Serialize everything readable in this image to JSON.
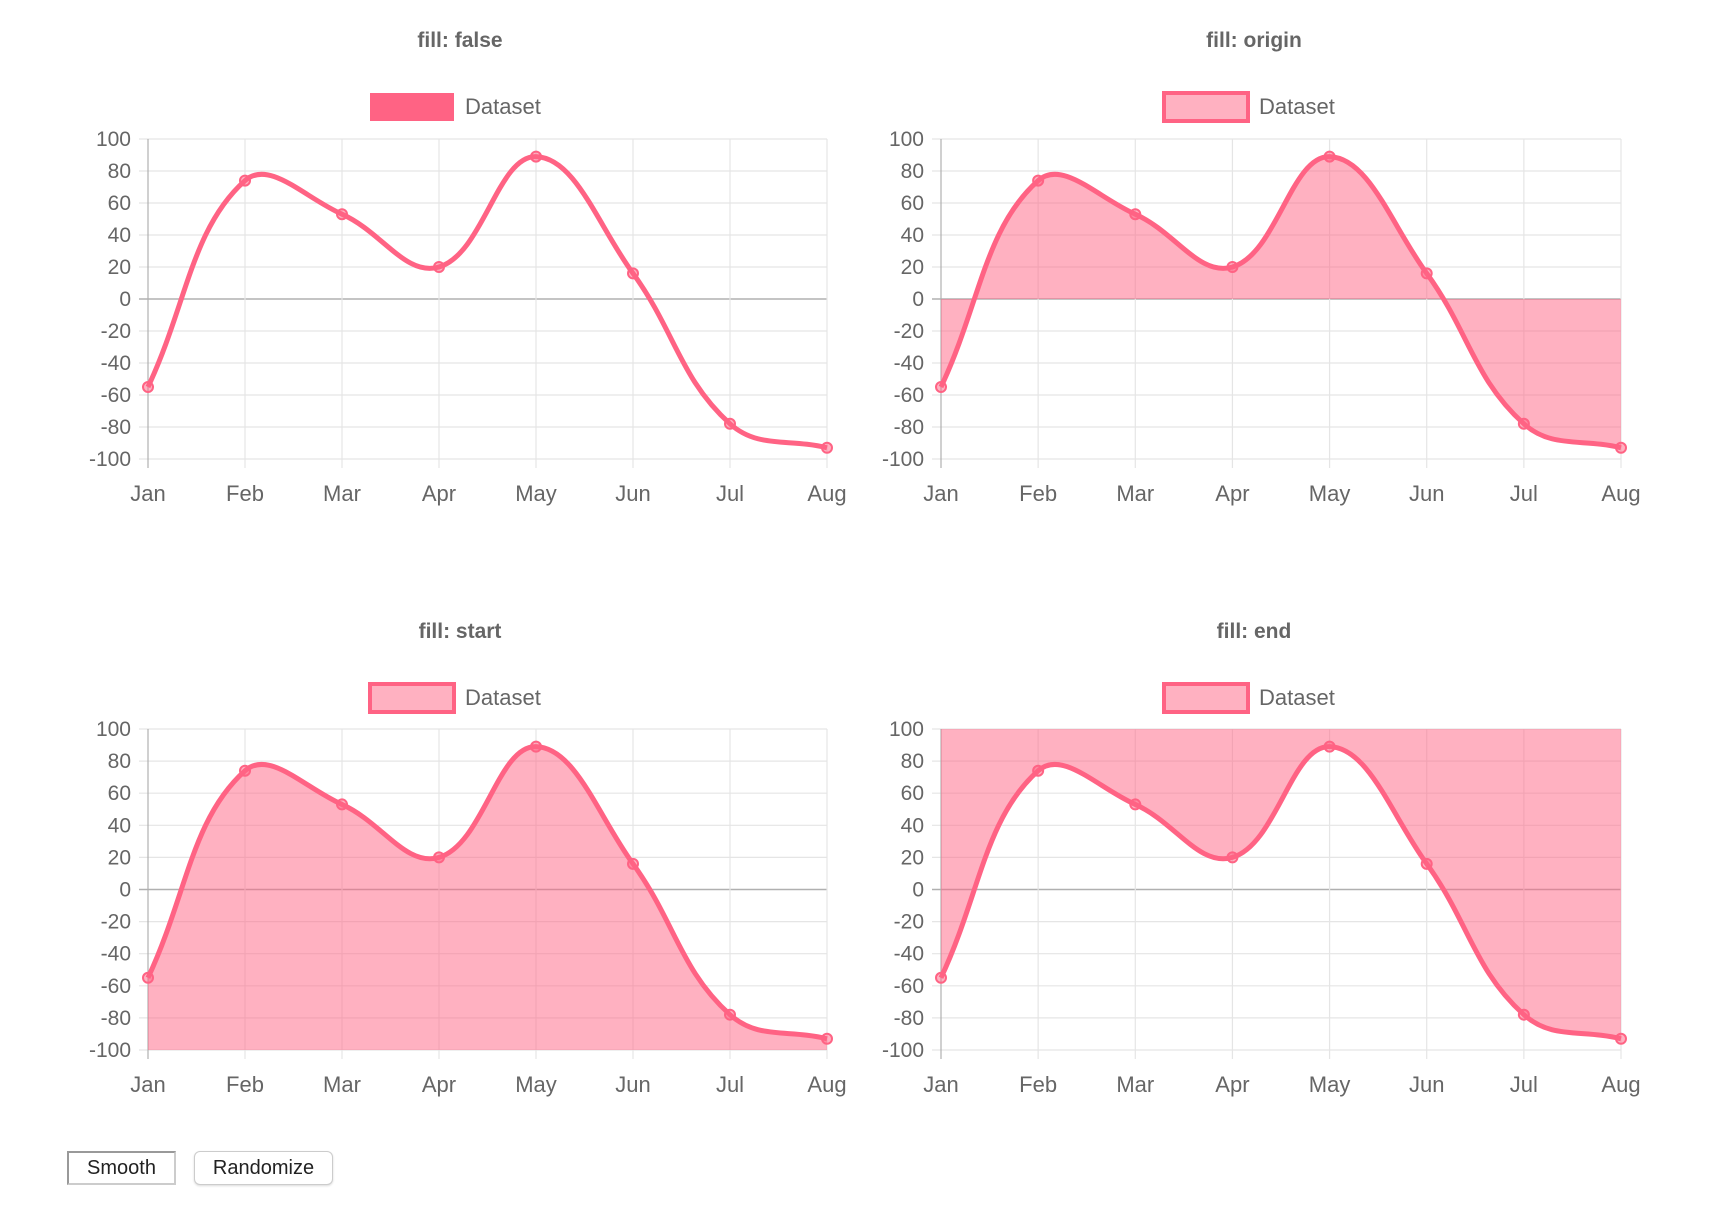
{
  "chart_data": [
    {
      "type": "line",
      "title": "fill: false",
      "fill": "false",
      "categories": [
        "Jan",
        "Feb",
        "Mar",
        "Apr",
        "May",
        "Jun",
        "Jul",
        "Aug"
      ],
      "series": [
        {
          "name": "Dataset",
          "values": [
            -55,
            74,
            53,
            20,
            89,
            16,
            -78,
            -93
          ]
        }
      ],
      "ylim": [
        -100,
        100
      ],
      "yticks": [
        100,
        80,
        60,
        40,
        20,
        0,
        -20,
        -40,
        -60,
        -80,
        -100
      ],
      "grid": true,
      "legend": "top"
    },
    {
      "type": "area",
      "title": "fill: origin",
      "fill": "origin",
      "categories": [
        "Jan",
        "Feb",
        "Mar",
        "Apr",
        "May",
        "Jun",
        "Jul",
        "Aug"
      ],
      "series": [
        {
          "name": "Dataset",
          "values": [
            -55,
            74,
            53,
            20,
            89,
            16,
            -78,
            -93
          ]
        }
      ],
      "ylim": [
        -100,
        100
      ],
      "yticks": [
        100,
        80,
        60,
        40,
        20,
        0,
        -20,
        -40,
        -60,
        -80,
        -100
      ],
      "grid": true,
      "legend": "top"
    },
    {
      "type": "area",
      "title": "fill: start",
      "fill": "start",
      "categories": [
        "Jan",
        "Feb",
        "Mar",
        "Apr",
        "May",
        "Jun",
        "Jul",
        "Aug"
      ],
      "series": [
        {
          "name": "Dataset",
          "values": [
            -55,
            74,
            53,
            20,
            89,
            16,
            -78,
            -93
          ]
        }
      ],
      "ylim": [
        -100,
        100
      ],
      "yticks": [
        100,
        80,
        60,
        40,
        20,
        0,
        -20,
        -40,
        -60,
        -80,
        -100
      ],
      "grid": true,
      "legend": "top"
    },
    {
      "type": "area",
      "title": "fill: end",
      "fill": "end",
      "categories": [
        "Jan",
        "Feb",
        "Mar",
        "Apr",
        "May",
        "Jun",
        "Jul",
        "Aug"
      ],
      "series": [
        {
          "name": "Dataset",
          "values": [
            -55,
            74,
            53,
            20,
            89,
            16,
            -78,
            -93
          ]
        }
      ],
      "ylim": [
        -100,
        100
      ],
      "yticks": [
        100,
        80,
        60,
        40,
        20,
        0,
        -20,
        -40,
        -60,
        -80,
        -100
      ],
      "grid": true,
      "legend": "top"
    }
  ],
  "colors": {
    "line": "#ff6384",
    "fill": "rgba(255,99,132,0.5)",
    "text": "#666666",
    "grid": "#e5e5e5",
    "zero": "#b0b0b0"
  },
  "controls": {
    "smooth_label": "Smooth",
    "randomize_label": "Randomize"
  }
}
